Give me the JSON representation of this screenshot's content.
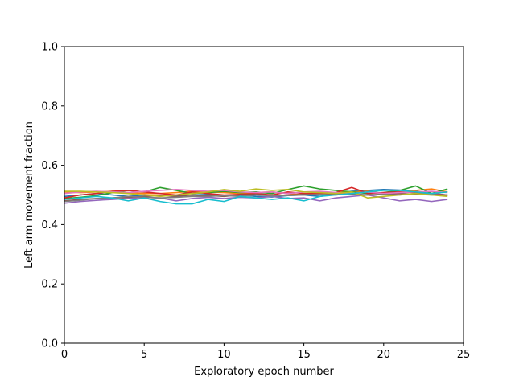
{
  "chart_data": {
    "type": "line",
    "title": "",
    "xlabel": "Exploratory epoch number",
    "ylabel": "Left arm movement fraction",
    "xlim": [
      0,
      25
    ],
    "ylim": [
      0.0,
      1.0
    ],
    "x_ticks": [
      0,
      5,
      10,
      15,
      20,
      25
    ],
    "x_tick_labels": [
      "0",
      "5",
      "10",
      "15",
      "20",
      "25"
    ],
    "y_ticks": [
      0.0,
      0.2,
      0.4,
      0.6,
      0.8,
      1.0
    ],
    "y_tick_labels": [
      "0.0",
      "0.2",
      "0.4",
      "0.6",
      "0.8",
      "1.0"
    ],
    "grid": false,
    "legend": "none",
    "x": [
      0,
      1,
      2,
      3,
      4,
      5,
      6,
      7,
      8,
      9,
      10,
      11,
      12,
      13,
      14,
      15,
      16,
      17,
      18,
      19,
      20,
      21,
      22,
      23,
      24
    ],
    "series": [
      {
        "color": "#1f77b4",
        "values": [
          0.495,
          0.5,
          0.505,
          0.5,
          0.495,
          0.5,
          0.498,
          0.496,
          0.5,
          0.502,
          0.497,
          0.5,
          0.495,
          0.493,
          0.498,
          0.5,
          0.495,
          0.503,
          0.512,
          0.515,
          0.518,
          0.516,
          0.512,
          0.505,
          0.5
        ]
      },
      {
        "color": "#ff7f0e",
        "values": [
          0.51,
          0.508,
          0.51,
          0.512,
          0.508,
          0.505,
          0.505,
          0.508,
          0.512,
          0.51,
          0.508,
          0.505,
          0.508,
          0.51,
          0.505,
          0.5,
          0.505,
          0.508,
          0.51,
          0.512,
          0.505,
          0.508,
          0.515,
          0.52,
          0.51
        ]
      },
      {
        "color": "#2ca02c",
        "values": [
          0.488,
          0.492,
          0.498,
          0.508,
          0.515,
          0.51,
          0.525,
          0.515,
          0.505,
          0.508,
          0.512,
          0.508,
          0.51,
          0.505,
          0.518,
          0.53,
          0.52,
          0.515,
          0.51,
          0.505,
          0.508,
          0.515,
          0.53,
          0.505,
          0.52
        ]
      },
      {
        "color": "#d62728",
        "values": [
          0.49,
          0.5,
          0.505,
          0.512,
          0.515,
          0.51,
          0.505,
          0.5,
          0.51,
          0.505,
          0.5,
          0.502,
          0.505,
          0.5,
          0.51,
          0.505,
          0.505,
          0.508,
          0.525,
          0.505,
          0.508,
          0.51,
          0.508,
          0.505,
          0.5
        ]
      },
      {
        "color": "#9467bd",
        "values": [
          0.472,
          0.478,
          0.482,
          0.485,
          0.488,
          0.492,
          0.49,
          0.48,
          0.488,
          0.492,
          0.488,
          0.492,
          0.49,
          0.495,
          0.488,
          0.49,
          0.48,
          0.49,
          0.495,
          0.5,
          0.49,
          0.48,
          0.485,
          0.478,
          0.485
        ]
      },
      {
        "color": "#8c564b",
        "values": [
          0.48,
          0.485,
          0.488,
          0.49,
          0.492,
          0.495,
          0.498,
          0.495,
          0.5,
          0.498,
          0.495,
          0.5,
          0.502,
          0.498,
          0.5,
          0.502,
          0.5,
          0.505,
          0.502,
          0.5,
          0.503,
          0.505,
          0.502,
          0.5,
          0.498
        ]
      },
      {
        "color": "#e377c2",
        "values": [
          0.505,
          0.51,
          0.512,
          0.51,
          0.508,
          0.512,
          0.515,
          0.518,
          0.515,
          0.512,
          0.515,
          0.51,
          0.508,
          0.51,
          0.505,
          0.51,
          0.512,
          0.508,
          0.505,
          0.51,
          0.505,
          0.508,
          0.51,
          0.512,
          0.508
        ]
      },
      {
        "color": "#7f7f7f",
        "values": [
          0.478,
          0.482,
          0.488,
          0.49,
          0.495,
          0.492,
          0.49,
          0.492,
          0.495,
          0.495,
          0.498,
          0.495,
          0.5,
          0.497,
          0.498,
          0.5,
          0.502,
          0.5,
          0.505,
          0.5,
          0.502,
          0.5,
          0.505,
          0.502,
          0.5
        ]
      },
      {
        "color": "#bcbd22",
        "values": [
          0.512,
          0.512,
          0.51,
          0.508,
          0.505,
          0.5,
          0.495,
          0.5,
          0.505,
          0.51,
          0.518,
          0.512,
          0.52,
          0.515,
          0.518,
          0.51,
          0.508,
          0.505,
          0.51,
          0.49,
          0.495,
          0.5,
          0.505,
          0.5,
          0.495
        ]
      },
      {
        "color": "#17becf",
        "values": [
          0.485,
          0.49,
          0.495,
          0.49,
          0.48,
          0.49,
          0.478,
          0.47,
          0.47,
          0.485,
          0.478,
          0.495,
          0.49,
          0.485,
          0.49,
          0.48,
          0.495,
          0.5,
          0.505,
          0.51,
          0.515,
          0.515,
          0.51,
          0.505,
          0.51
        ]
      }
    ]
  }
}
